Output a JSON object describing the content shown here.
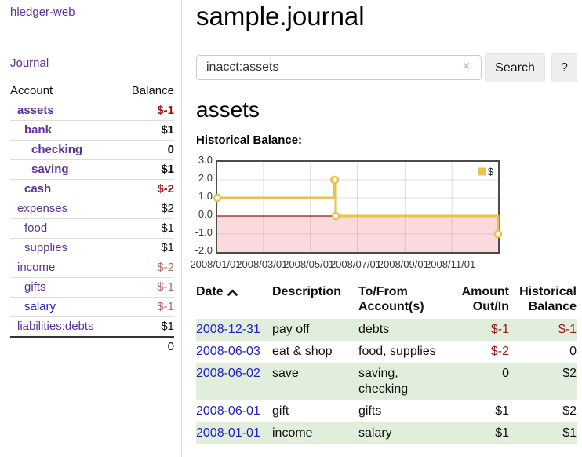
{
  "colors": {
    "link_purple": "#5c3399",
    "link_blue": "#2222cc",
    "negative_strong": "#9e1414",
    "negative_muted": "#b46a6a",
    "row_green": "#e1eedb",
    "series_gold": "#e8c24a",
    "negative_region_pink": "#fbd9dc",
    "zero_line_red": "#951515"
  },
  "sidebar": {
    "brand": "hledger-web",
    "nav": {
      "journal": "Journal"
    },
    "table": {
      "headers": {
        "account": "Account",
        "balance": "Balance"
      },
      "accounts": [
        {
          "name": "assets",
          "balance": "$-1",
          "level": 1,
          "bold": true,
          "balance_style": "negstrong",
          "link_style": "purple"
        },
        {
          "name": "bank",
          "balance": "$1",
          "level": 2,
          "bold": true,
          "balance_style": "normal",
          "link_style": "purple"
        },
        {
          "name": "checking",
          "balance": "0",
          "level": 3,
          "bold": true,
          "balance_style": "normal",
          "link_style": "purple"
        },
        {
          "name": "saving",
          "balance": "$1",
          "level": 3,
          "bold": true,
          "balance_style": "normal",
          "link_style": "purple"
        },
        {
          "name": "cash",
          "balance": "$-2",
          "level": 2,
          "bold": true,
          "balance_style": "negstrong",
          "link_style": "purple"
        },
        {
          "name": "expenses",
          "balance": "$2",
          "level": 1,
          "bold": false,
          "balance_style": "normal",
          "link_style": "purple"
        },
        {
          "name": "food",
          "balance": "$1",
          "level": 2,
          "bold": false,
          "balance_style": "normal",
          "link_style": "purple"
        },
        {
          "name": "supplies",
          "balance": "$1",
          "level": 2,
          "bold": false,
          "balance_style": "normal",
          "link_style": "purple"
        },
        {
          "name": "income",
          "balance": "$-2",
          "level": 1,
          "bold": false,
          "balance_style": "negmuted",
          "link_style": "purple"
        },
        {
          "name": "gifts",
          "balance": "$-1",
          "level": 2,
          "bold": false,
          "balance_style": "negmuted",
          "link_style": "purple"
        },
        {
          "name": "salary",
          "balance": "$-1",
          "level": 2,
          "bold": false,
          "balance_style": "negmuted",
          "link_style": "blue"
        },
        {
          "name": "liabilities:debts",
          "balance": "$1",
          "level": 1,
          "bold": false,
          "balance_style": "normal",
          "link_style": "purple"
        }
      ],
      "total": "0"
    }
  },
  "main": {
    "title": "sample.journal",
    "search": {
      "value": "inacct:assets",
      "clear_icon": "×",
      "search_button": "Search",
      "help_button": "?"
    },
    "account": {
      "heading": "assets",
      "chart_title": "Historical Balance:"
    }
  },
  "chart_data": {
    "type": "line",
    "style": "step",
    "title": "Historical Balance:",
    "series": [
      {
        "name": "$",
        "color": "#e8c24a",
        "points": [
          {
            "date": "2008-01-01",
            "value": 1
          },
          {
            "date": "2008-06-01",
            "value": 2
          },
          {
            "date": "2008-06-02",
            "value": 2
          },
          {
            "date": "2008-06-03",
            "value": 0
          },
          {
            "date": "2008-12-31",
            "value": -1
          }
        ]
      }
    ],
    "x_range": [
      "2008-01-01",
      "2008-12-31"
    ],
    "ylim": [
      -2,
      3
    ],
    "yticks": [
      3.0,
      2.0,
      1.0,
      0.0,
      -1.0,
      -2.0
    ],
    "xtick_labels": [
      "2008/01/01",
      "2008/03/01",
      "2008/05/01",
      "2008/07/01",
      "2008/09/01",
      "2008/11/01"
    ],
    "legend": {
      "label": "$",
      "position": "top-right"
    },
    "grid": true
  },
  "register": {
    "headers": [
      "Date",
      "Description",
      "To/From Account(s)",
      "Amount Out/In",
      "Historical Balance"
    ],
    "sort_icon": "chevron-up",
    "rows": [
      {
        "date": "2008-12-31",
        "description": "pay off",
        "accounts": "debts",
        "amount": "$-1",
        "balance": "$-1"
      },
      {
        "date": "2008-06-03",
        "description": "eat & shop",
        "accounts": "food, supplies",
        "amount": "$-2",
        "balance": "0"
      },
      {
        "date": "2008-06-02",
        "description": "save",
        "accounts": "saving, checking",
        "amount": "0",
        "balance": "$2"
      },
      {
        "date": "2008-06-01",
        "description": "gift",
        "accounts": "gifts",
        "amount": "$1",
        "balance": "$2"
      },
      {
        "date": "2008-01-01",
        "description": "income",
        "accounts": "salary",
        "amount": "$1",
        "balance": "$1"
      }
    ]
  }
}
